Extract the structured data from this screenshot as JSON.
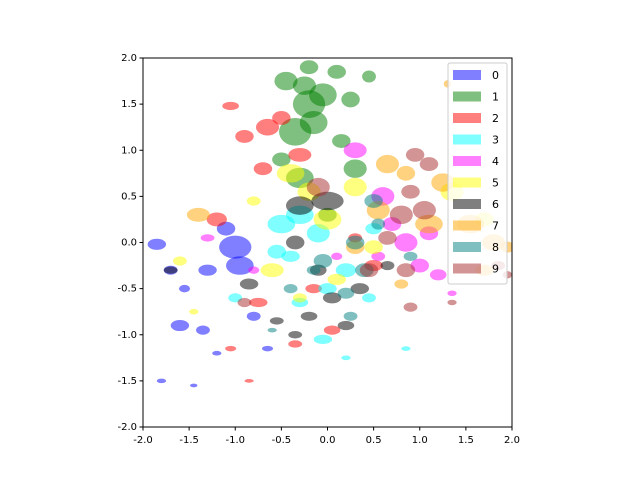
{
  "chart_data": {
    "type": "scatter",
    "marker": "ellipse",
    "opacity": 0.5,
    "legend": "upper right",
    "grid": false,
    "xlim": [
      -2,
      2
    ],
    "ylim": [
      -2,
      2
    ],
    "xticks": [
      {
        "value": -2,
        "label": "-2.0"
      },
      {
        "value": -1.5,
        "label": "-1.5"
      },
      {
        "value": -1,
        "label": "-1.0"
      },
      {
        "value": -0.5,
        "label": "-0.5"
      },
      {
        "value": 0,
        "label": "0.0"
      },
      {
        "value": 0.5,
        "label": "0.5"
      },
      {
        "value": 1,
        "label": "1.0"
      },
      {
        "value": 1.5,
        "label": "1.5"
      },
      {
        "value": 2,
        "label": "2.0"
      }
    ],
    "yticks": [
      {
        "value": -2,
        "label": "-2.0"
      },
      {
        "value": -1.5,
        "label": "-1.5"
      },
      {
        "value": -1,
        "label": "-1.0"
      },
      {
        "value": -0.5,
        "label": "-0.5"
      },
      {
        "value": 0,
        "label": "0.0"
      },
      {
        "value": 0.5,
        "label": "0.5"
      },
      {
        "value": 1,
        "label": "1.0"
      },
      {
        "value": 1.5,
        "label": "1.5"
      },
      {
        "value": 2,
        "label": "2.0"
      }
    ],
    "series": [
      {
        "name": "0",
        "color": "blue",
        "x": [
          -1.85,
          -1.7,
          -1.55,
          -1.6,
          -1.35,
          -1.3,
          -1.1,
          -0.95,
          -0.8,
          -1.2,
          -1.8,
          -1.45,
          -0.65,
          -1.0
        ],
        "values": [
          -0.02,
          -0.3,
          -0.5,
          -0.9,
          -0.95,
          -0.3,
          0.15,
          -0.25,
          -0.8,
          -1.2,
          -1.5,
          -1.55,
          -1.15,
          -0.05
        ],
        "widths": [
          0.2,
          0.15,
          0.12,
          0.2,
          0.15,
          0.2,
          0.2,
          0.3,
          0.15,
          0.1,
          0.1,
          0.08,
          0.12,
          0.35
        ],
        "heights": [
          0.12,
          0.1,
          0.08,
          0.12,
          0.1,
          0.12,
          0.15,
          0.2,
          0.1,
          0.05,
          0.05,
          0.04,
          0.06,
          0.25
        ]
      },
      {
        "name": "1",
        "color": "green",
        "x": [
          -0.2,
          -0.15,
          -0.25,
          -0.05,
          0.1,
          0.25,
          -0.45,
          -0.35,
          0.45,
          -0.5,
          0.3,
          0.15,
          -0.3,
          0.0,
          -0.2
        ],
        "values": [
          1.5,
          1.3,
          1.7,
          1.6,
          1.85,
          1.55,
          1.75,
          1.2,
          1.8,
          0.9,
          0.8,
          1.1,
          0.7,
          0.3,
          1.9
        ],
        "widths": [
          0.35,
          0.3,
          0.25,
          0.3,
          0.2,
          0.2,
          0.25,
          0.35,
          0.15,
          0.2,
          0.25,
          0.2,
          0.3,
          0.2,
          0.2
        ],
        "heights": [
          0.3,
          0.25,
          0.2,
          0.25,
          0.15,
          0.17,
          0.2,
          0.3,
          0.13,
          0.15,
          0.2,
          0.15,
          0.22,
          0.15,
          0.15
        ]
      },
      {
        "name": "2",
        "color": "red",
        "x": [
          -1.05,
          -0.65,
          -0.9,
          -0.5,
          -0.7,
          -1.2,
          -0.75,
          -0.15,
          0.05,
          -0.35,
          -1.05,
          -0.85,
          0.5,
          0.3,
          -0.3
        ],
        "values": [
          1.48,
          1.25,
          1.15,
          1.35,
          0.8,
          0.25,
          -0.65,
          -0.5,
          -0.95,
          -1.1,
          -1.15,
          -1.5,
          -0.25,
          0.05,
          0.95
        ],
        "widths": [
          0.18,
          0.25,
          0.2,
          0.2,
          0.2,
          0.22,
          0.2,
          0.18,
          0.18,
          0.15,
          0.12,
          0.1,
          0.2,
          0.15,
          0.25
        ],
        "heights": [
          0.09,
          0.18,
          0.14,
          0.15,
          0.14,
          0.15,
          0.1,
          0.1,
          0.1,
          0.08,
          0.06,
          0.04,
          0.12,
          0.1,
          0.15
        ]
      },
      {
        "name": "3",
        "color": "cyan",
        "x": [
          -0.5,
          -0.3,
          -0.1,
          -0.55,
          0.0,
          -0.3,
          0.2,
          0.5,
          -1.0,
          -0.05,
          0.2,
          0.85,
          0.45,
          -0.4
        ],
        "values": [
          0.2,
          0.3,
          0.1,
          -0.1,
          -0.5,
          -0.65,
          -0.3,
          0.15,
          -0.6,
          -1.05,
          -1.25,
          -1.15,
          -0.6,
          -0.15
        ],
        "widths": [
          0.3,
          0.3,
          0.25,
          0.2,
          0.2,
          0.18,
          0.22,
          0.18,
          0.15,
          0.2,
          0.1,
          0.1,
          0.15,
          0.2
        ],
        "heights": [
          0.2,
          0.2,
          0.2,
          0.15,
          0.12,
          0.1,
          0.15,
          0.12,
          0.1,
          0.1,
          0.05,
          0.05,
          0.1,
          0.12
        ]
      },
      {
        "name": "4",
        "color": "magenta",
        "x": [
          0.6,
          0.85,
          1.0,
          1.2,
          0.3,
          0.55,
          1.1,
          -1.3,
          -0.8,
          0.1,
          1.35,
          0.7
        ],
        "values": [
          0.5,
          0.0,
          -0.25,
          -0.35,
          1.0,
          -0.15,
          0.1,
          0.05,
          -0.3,
          -0.15,
          -0.55,
          0.2
        ],
        "widths": [
          0.25,
          0.25,
          0.2,
          0.18,
          0.25,
          0.15,
          0.2,
          0.15,
          0.12,
          0.12,
          0.1,
          0.2
        ],
        "heights": [
          0.2,
          0.2,
          0.15,
          0.12,
          0.17,
          0.1,
          0.15,
          0.08,
          0.08,
          0.08,
          0.06,
          0.15
        ]
      },
      {
        "name": "5",
        "color": "yellow",
        "x": [
          -0.4,
          0.0,
          -0.2,
          0.3,
          -0.6,
          -0.8,
          1.35,
          1.7,
          0.5,
          -1.6,
          -0.3,
          0.1,
          -1.45
        ],
        "values": [
          0.75,
          0.25,
          0.55,
          0.6,
          -0.3,
          0.45,
          0.55,
          0.25,
          -0.05,
          -0.2,
          -0.6,
          -0.4,
          -0.75
        ],
        "widths": [
          0.3,
          0.3,
          0.25,
          0.25,
          0.25,
          0.15,
          0.25,
          0.2,
          0.2,
          0.15,
          0.15,
          0.2,
          0.1
        ],
        "heights": [
          0.2,
          0.22,
          0.2,
          0.2,
          0.15,
          0.1,
          0.2,
          0.15,
          0.15,
          0.1,
          0.1,
          0.12,
          0.06
        ]
      },
      {
        "name": "6",
        "color": "black",
        "x": [
          0.0,
          -0.3,
          -0.35,
          -0.1,
          -0.2,
          0.2,
          -0.55,
          -0.85,
          -1.7,
          0.05,
          0.35,
          -0.35,
          0.65
        ],
        "values": [
          0.45,
          0.4,
          0.0,
          -0.3,
          -0.8,
          -0.9,
          -0.85,
          -0.45,
          -0.3,
          -0.6,
          -0.5,
          -1.0,
          -0.25
        ],
        "widths": [
          0.35,
          0.3,
          0.2,
          0.18,
          0.18,
          0.18,
          0.15,
          0.2,
          0.15,
          0.2,
          0.2,
          0.15,
          0.15
        ],
        "heights": [
          0.2,
          0.2,
          0.15,
          0.12,
          0.1,
          0.1,
          0.08,
          0.12,
          0.08,
          0.12,
          0.12,
          0.08,
          0.1
        ]
      },
      {
        "name": "7",
        "color": "orange",
        "x": [
          0.65,
          0.85,
          1.25,
          0.55,
          1.55,
          1.8,
          1.95,
          1.7,
          0.3,
          1.1,
          1.3,
          -1.4,
          0.8
        ],
        "values": [
          0.85,
          0.75,
          0.65,
          0.35,
          0.2,
          0.0,
          -0.05,
          -0.3,
          -0.05,
          0.2,
          1.72,
          0.3,
          -0.45
        ],
        "widths": [
          0.25,
          0.2,
          0.25,
          0.25,
          0.3,
          0.25,
          0.15,
          0.2,
          0.2,
          0.3,
          0.08,
          0.25,
          0.15
        ],
        "heights": [
          0.2,
          0.16,
          0.2,
          0.2,
          0.2,
          0.18,
          0.12,
          0.12,
          0.15,
          0.2,
          0.08,
          0.15,
          0.1
        ]
      },
      {
        "name": "8",
        "color": "teal",
        "x": [
          0.3,
          0.55,
          0.2,
          0.4,
          -0.05,
          0.5,
          -0.4,
          0.9,
          -0.15,
          0.25,
          -0.6
        ],
        "values": [
          0.0,
          0.2,
          -0.55,
          -0.3,
          -0.2,
          0.45,
          -0.5,
          -0.15,
          -0.3,
          -0.8,
          -0.95
        ],
        "widths": [
          0.2,
          0.15,
          0.18,
          0.2,
          0.2,
          0.2,
          0.15,
          0.15,
          0.15,
          0.15,
          0.1
        ],
        "heights": [
          0.15,
          0.12,
          0.12,
          0.15,
          0.15,
          0.15,
          0.1,
          0.1,
          0.1,
          0.1,
          0.05
        ]
      },
      {
        "name": "9",
        "color": "brown",
        "x": [
          0.95,
          1.1,
          0.9,
          1.05,
          0.8,
          0.65,
          1.85,
          1.95,
          0.45,
          0.9,
          1.35,
          -0.1,
          -0.9,
          0.85
        ],
        "values": [
          0.95,
          0.85,
          0.55,
          0.35,
          0.3,
          0.05,
          -0.25,
          -0.35,
          -0.3,
          -0.7,
          -0.65,
          0.6,
          -0.65,
          -0.3
        ],
        "widths": [
          0.2,
          0.2,
          0.2,
          0.25,
          0.25,
          0.2,
          0.15,
          0.1,
          0.2,
          0.15,
          0.1,
          0.25,
          0.15,
          0.2
        ],
        "heights": [
          0.15,
          0.15,
          0.15,
          0.2,
          0.2,
          0.15,
          0.1,
          0.08,
          0.15,
          0.1,
          0.06,
          0.2,
          0.1,
          0.15
        ]
      }
    ]
  }
}
